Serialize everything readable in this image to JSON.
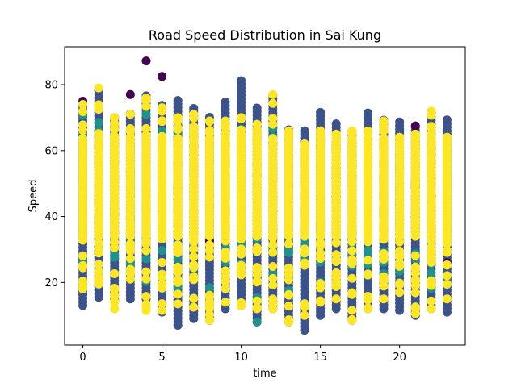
{
  "chart_data": {
    "type": "scatter",
    "title": "Road Speed Distribution in Sai Kung",
    "xlabel": "time",
    "ylabel": "Speed",
    "xlim": [
      -1.15,
      24.15
    ],
    "ylim": [
      1.0,
      91.5
    ],
    "xticks": [
      0,
      5,
      10,
      15,
      20
    ],
    "yticks": [
      20,
      40,
      60,
      80
    ],
    "grid": false,
    "legend": "none",
    "colors": {
      "dark_purple": "#440154",
      "indigo": "#3b528b",
      "teal": "#21918c",
      "yellow": "#fde725"
    },
    "x": [
      0,
      1,
      2,
      3,
      4,
      5,
      6,
      7,
      8,
      9,
      10,
      11,
      12,
      13,
      14,
      15,
      16,
      17,
      18,
      19,
      20,
      21,
      22,
      23
    ],
    "columns": [
      {
        "x": 0,
        "indigo_range": [
          13,
          74
        ],
        "teal_range": [
          17,
          71
        ],
        "yellow_range": [
          18,
          74
        ],
        "purple_points": [
          75
        ]
      },
      {
        "x": 1,
        "indigo_range": [
          15.5,
          79
        ],
        "teal_range": [
          18,
          73
        ],
        "yellow_range": [
          19.5,
          79
        ],
        "purple_points": []
      },
      {
        "x": 2,
        "indigo_range": [
          15,
          71
        ],
        "teal_range": [
          20,
          68
        ],
        "yellow_range": [
          12,
          70
        ],
        "purple_points": []
      },
      {
        "x": 3,
        "indigo_range": [
          15,
          72
        ],
        "teal_range": [
          21,
          68
        ],
        "yellow_range": [
          21,
          71
        ],
        "purple_points": [
          77
        ]
      },
      {
        "x": 4,
        "indigo_range": [
          15,
          77
        ],
        "teal_range": [
          20,
          74
        ],
        "yellow_range": [
          11.5,
          76
        ],
        "purple_points": [
          87.2
        ]
      },
      {
        "x": 5,
        "indigo_range": [
          11,
          74
        ],
        "teal_range": [
          20,
          68
        ],
        "yellow_range": [
          11.5,
          73
        ],
        "purple_points": [
          82.5,
          19.5
        ]
      },
      {
        "x": 6,
        "indigo_range": [
          7,
          75.5
        ],
        "teal_range": [
          18,
          66
        ],
        "yellow_range": [
          13.5,
          70
        ],
        "purple_points": []
      },
      {
        "x": 7,
        "indigo_range": [
          9,
          73
        ],
        "teal_range": [
          20,
          68
        ],
        "yellow_range": [
          12.5,
          71
        ],
        "purple_points": []
      },
      {
        "x": 8,
        "indigo_range": [
          8.5,
          70.5
        ],
        "teal_range": [
          18,
          66
        ],
        "yellow_range": [
          8.5,
          69
        ],
        "purple_points": [
          32.5
        ]
      },
      {
        "x": 9,
        "indigo_range": [
          12,
          75
        ],
        "teal_range": [
          20,
          68
        ],
        "yellow_range": [
          14,
          69
        ],
        "purple_points": []
      },
      {
        "x": 10,
        "indigo_range": [
          13,
          82
        ],
        "teal_range": [
          20,
          68
        ],
        "yellow_range": [
          13,
          70
        ],
        "purple_points": []
      },
      {
        "x": 11,
        "indigo_range": [
          8,
          73
        ],
        "teal_range": [
          15,
          68
        ],
        "yellow_range": [
          12,
          68
        ],
        "purple_points": [],
        "teal_points": [
          8
        ]
      },
      {
        "x": 12,
        "indigo_range": [
          12,
          77
        ],
        "teal_range": [
          18,
          68
        ],
        "yellow_range": [
          12,
          77
        ],
        "purple_points": []
      },
      {
        "x": 13,
        "indigo_range": [
          8,
          67
        ],
        "teal_range": [
          16,
          64
        ],
        "yellow_range": [
          8,
          66
        ],
        "purple_points": []
      },
      {
        "x": 14,
        "indigo_range": [
          5.5,
          67
        ],
        "teal_range": [
          11,
          62
        ],
        "yellow_range": [
          10,
          62
        ],
        "purple_points": []
      },
      {
        "x": 15,
        "indigo_range": [
          10,
          72
        ],
        "teal_range": [
          18,
          66
        ],
        "yellow_range": [
          14,
          66
        ],
        "purple_points": []
      },
      {
        "x": 16,
        "indigo_range": [
          12,
          69
        ],
        "teal_range": [
          18,
          65
        ],
        "yellow_range": [
          15,
          65
        ],
        "purple_points": []
      },
      {
        "x": 17,
        "indigo_range": [
          8.5,
          66.5
        ],
        "teal_range": [
          24,
          63
        ],
        "yellow_range": [
          8.5,
          66
        ],
        "purple_points": []
      },
      {
        "x": 18,
        "indigo_range": [
          12,
          72
        ],
        "teal_range": [
          18,
          66
        ],
        "yellow_range": [
          12,
          66
        ],
        "purple_points": []
      },
      {
        "x": 19,
        "indigo_range": [
          12,
          70
        ],
        "teal_range": [
          17,
          66
        ],
        "yellow_range": [
          15,
          69
        ],
        "purple_points": []
      },
      {
        "x": 20,
        "indigo_range": [
          11.5,
          69.5
        ],
        "teal_range": [
          18,
          64
        ],
        "yellow_range": [
          17,
          64
        ],
        "purple_points": []
      },
      {
        "x": 21,
        "indigo_range": [
          10,
          67.5
        ],
        "teal_range": [
          18,
          64
        ],
        "yellow_range": [
          10.5,
          65
        ],
        "purple_points": [
          67.5,
          28
        ]
      },
      {
        "x": 22,
        "indigo_range": [
          12,
          72
        ],
        "teal_range": [
          18,
          66
        ],
        "yellow_range": [
          12,
          72
        ],
        "purple_points": []
      },
      {
        "x": 23,
        "indigo_range": [
          11,
          70
        ],
        "teal_range": [
          20,
          64
        ],
        "yellow_range": [
          15,
          64
        ],
        "purple_points": [
          26,
          22
        ]
      }
    ]
  }
}
